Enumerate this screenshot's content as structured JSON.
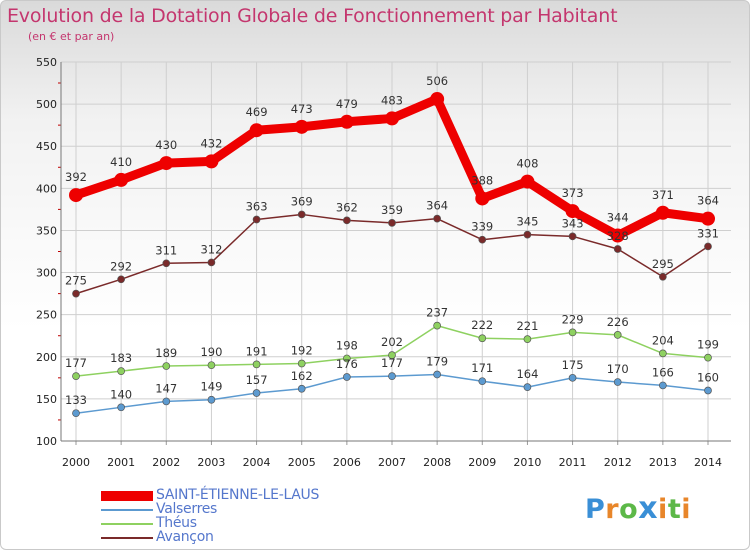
{
  "title": "Evolution de la Dotation Globale de Fonctionnement par Habitant",
  "subtitle": "(en € et par an)",
  "logo": {
    "letters": [
      "P",
      "r",
      "o",
      "x",
      "i",
      "t",
      "i"
    ],
    "colors": [
      "#3a8fd6",
      "#e8862a",
      "#5cb848",
      "#3a8fd6",
      "#e8862a",
      "#5cb848",
      "#e8862a"
    ]
  },
  "chart_data": {
    "type": "line",
    "title": "Evolution de la Dotation Globale de Fonctionnement par Habitant",
    "subtitle": "(en € et par an)",
    "categories": [
      "2000",
      "2001",
      "2002",
      "2003",
      "2004",
      "2005",
      "2006",
      "2007",
      "2008",
      "2009",
      "2010",
      "2011",
      "2012",
      "2013",
      "2014"
    ],
    "ylim": [
      100,
      550
    ],
    "yticks": [
      100,
      150,
      200,
      250,
      300,
      350,
      400,
      450,
      500,
      550
    ],
    "grid": true,
    "legend_position": "bottom-left",
    "series": [
      {
        "name": "SAINT-ÉTIENNE-LE-LAUS",
        "color": "#ee0000",
        "emphasis": true,
        "values": [
          392,
          410,
          430,
          432,
          469,
          473,
          479,
          483,
          506,
          388,
          408,
          373,
          344,
          371,
          364
        ],
        "labels": [
          "392",
          "410",
          "430",
          "432",
          "469",
          "473",
          "479",
          "483",
          "506",
          "388",
          "408",
          "373",
          "344",
          "371",
          "364"
        ]
      },
      {
        "name": "Valserres",
        "color": "#5c9ad0",
        "emphasis": false,
        "values": [
          133,
          140,
          147,
          149,
          157,
          162,
          176,
          177,
          179,
          171,
          164,
          175,
          170,
          166,
          160
        ],
        "labels": [
          "133",
          "140",
          "147",
          "149",
          "157",
          "162",
          "176",
          "177",
          "179",
          "171",
          "164",
          "175",
          "170",
          "166",
          "160"
        ]
      },
      {
        "name": "Théus",
        "color": "#8ed160",
        "emphasis": false,
        "values": [
          177,
          183,
          189,
          190,
          191,
          192,
          198,
          202,
          237,
          222,
          221,
          229,
          226,
          204,
          199
        ],
        "labels": [
          "177",
          "183",
          "189",
          "190",
          "191",
          "192",
          "198",
          "202",
          "237",
          "222",
          "221",
          "229",
          "226",
          "204",
          "199"
        ]
      },
      {
        "name": "Avançon",
        "color": "#7a2a2a",
        "emphasis": false,
        "values": [
          275,
          292,
          311,
          312,
          363,
          369,
          362,
          359,
          364,
          339,
          345,
          343,
          328,
          295,
          331
        ],
        "labels": [
          "275",
          "292",
          "311",
          "312",
          "363",
          "369",
          "362",
          "359",
          "364",
          "339",
          "345",
          "343",
          "328",
          "295",
          "331"
        ]
      }
    ]
  }
}
